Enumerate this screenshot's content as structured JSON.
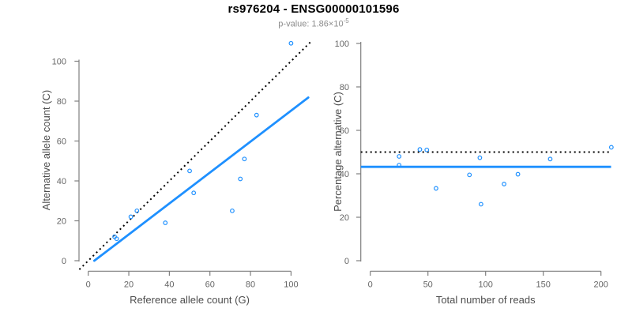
{
  "header": {
    "title": "rs976204 - ENSG00000101596",
    "subtitle_prefix": "p-value: 1.86×10",
    "subtitle_exponent": "-5"
  },
  "colors": {
    "accent_blue": "#1E90FF",
    "dotted_line_black": "#000000",
    "axis_gray": "#7f7f7f",
    "tick_label_gray": "#666666",
    "axis_title_gray": "#4d4d4d",
    "subtitle_gray": "#8c8c8c"
  },
  "chart_data": [
    {
      "type": "scatter",
      "name": "allele-counts",
      "xlabel": "Reference allele count (G)",
      "ylabel": "Alternative allele count (C)",
      "xticks": [
        0,
        20,
        40,
        60,
        80,
        100
      ],
      "yticks": [
        0,
        20,
        40,
        60,
        80,
        100
      ],
      "xlim": [
        -4.4,
        112.3
      ],
      "ylim": [
        -4.4,
        113.4
      ],
      "grid": false,
      "points": [
        [
          13,
          12
        ],
        [
          14,
          11
        ],
        [
          21,
          22
        ],
        [
          24,
          25
        ],
        [
          38,
          19
        ],
        [
          50,
          45
        ],
        [
          52,
          34
        ],
        [
          71,
          25
        ],
        [
          75,
          41
        ],
        [
          77,
          51
        ],
        [
          83,
          73
        ],
        [
          100,
          109
        ]
      ],
      "identity_line": {
        "style": "dotted",
        "from": [
          -4.4,
          -4.4
        ],
        "to": [
          110.5,
          110.5
        ]
      },
      "fit_line": {
        "style": "solid",
        "from": [
          3,
          0
        ],
        "to": [
          108.5,
          81.8
        ]
      }
    },
    {
      "type": "scatter",
      "name": "percentage-alternative",
      "xlabel": "Total number of reads",
      "ylabel": "Percentage alternative (C)",
      "xticks": [
        0,
        50,
        100,
        150,
        200
      ],
      "yticks": [
        0,
        20,
        40,
        60,
        80,
        100
      ],
      "xlim": [
        -8,
        217.4
      ],
      "ylim": [
        0,
        100
      ],
      "grid": false,
      "points": [
        [
          25,
          48.0
        ],
        [
          25,
          44.0
        ],
        [
          43,
          51.2
        ],
        [
          49,
          51.0
        ],
        [
          57,
          33.3
        ],
        [
          86,
          39.5
        ],
        [
          95,
          47.4
        ],
        [
          96,
          26.0
        ],
        [
          116,
          35.3
        ],
        [
          128,
          39.8
        ],
        [
          156,
          46.8
        ],
        [
          209,
          52.2
        ]
      ],
      "hline_dotted": 50,
      "hline_solid": 43.2
    }
  ]
}
